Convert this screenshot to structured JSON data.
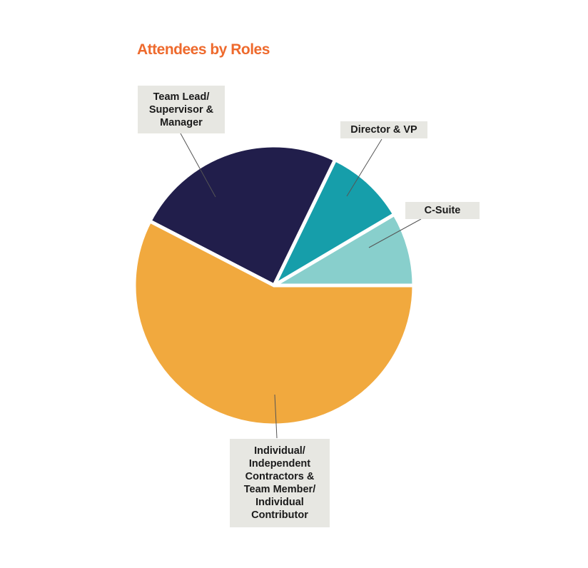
{
  "chart_data": {
    "type": "pie",
    "title": "Attendees by Roles",
    "unit": "percent (estimated from slice angles)",
    "slices": [
      {
        "label": "C-Suite",
        "value": 8.5,
        "color": "#88CFCC"
      },
      {
        "label": "Director & VP",
        "value": 9.3,
        "color": "#169EAA"
      },
      {
        "label": "Team Lead/ Supervisor & Manager",
        "value": 24.6,
        "color": "#211E4B"
      },
      {
        "label": "Individual/ Independent Contractors & Team Member/ Individual Contributor",
        "value": 57.6,
        "color": "#F1A93E"
      }
    ],
    "start_angle_deg": 0,
    "direction": "counterclockwise from 3 o'clock",
    "legend": "callout labels"
  },
  "labels": {
    "team_lead": "Team Lead/\nSupervisor &\nManager",
    "director": "Director & VP",
    "csuite": "C-Suite",
    "individual": "Individual/\nIndependent\nContractors &\nTeam Member/\nIndividual\nContributor"
  },
  "colors": {
    "title": "#EE6A2D",
    "label_bg": "#E7E7E2"
  }
}
